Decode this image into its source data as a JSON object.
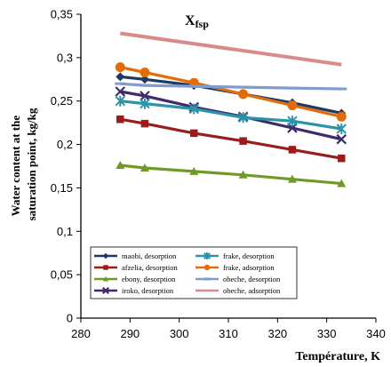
{
  "chart_data": {
    "type": "line",
    "annotation": "X",
    "annotation_sub": "fsp",
    "xlabel": "Température, K",
    "ylabel_lines": [
      "Water content at the",
      "saturation point, kg/kg"
    ],
    "xlim": [
      280,
      340
    ],
    "ylim": [
      0,
      0.35
    ],
    "x_ticks": [
      "280",
      "290",
      "300",
      "310",
      "320",
      "330",
      "340"
    ],
    "y_ticks": [
      "0",
      "0,05",
      "0,1",
      "0,15",
      "0,2",
      "0,25",
      "0,3",
      "0,35"
    ],
    "legend_placement": "bottom-center",
    "grid": false,
    "series": [
      {
        "name": "maobi, desorption",
        "color": "#1f3864",
        "marker": "diamond",
        "x": [
          288,
          293,
          303,
          313,
          323,
          333
        ],
        "y": [
          0.278,
          0.275,
          0.268,
          0.258,
          0.248,
          0.236
        ]
      },
      {
        "name": "afzelia, desorption",
        "color": "#9b1c1c",
        "marker": "square",
        "x": [
          288,
          293,
          303,
          313,
          323,
          333
        ],
        "y": [
          0.229,
          0.224,
          0.213,
          0.204,
          0.194,
          0.184
        ]
      },
      {
        "name": "ebony, desorption",
        "color": "#6e9a28",
        "marker": "triangle",
        "x": [
          288,
          293,
          303,
          313,
          323,
          333
        ],
        "y": [
          0.176,
          0.173,
          0.169,
          0.165,
          0.16,
          0.155
        ]
      },
      {
        "name": "iroko, desorption",
        "color": "#3f2a6b",
        "marker": "x",
        "x": [
          288,
          293,
          303,
          313,
          323,
          333
        ],
        "y": [
          0.261,
          0.256,
          0.243,
          0.232,
          0.219,
          0.206
        ]
      },
      {
        "name": "frake, desorption",
        "color": "#2b94a8",
        "marker": "star",
        "x": [
          288,
          293,
          303,
          313,
          323,
          333
        ],
        "y": [
          0.25,
          0.247,
          0.241,
          0.231,
          0.227,
          0.218
        ]
      },
      {
        "name": "frake, adsorption",
        "color": "#e36c0a",
        "marker": "circle",
        "x": [
          288,
          293,
          303,
          313,
          323,
          333
        ],
        "y": [
          0.289,
          0.283,
          0.271,
          0.258,
          0.245,
          0.232
        ]
      },
      {
        "name": "obeche, desorption",
        "color": "#7f9ccf",
        "marker": "dash",
        "x": [
          288,
          293,
          303,
          313,
          323,
          333
        ],
        "y": [
          0.27,
          0.268,
          0.267,
          0.266,
          0.265,
          0.264
        ]
      },
      {
        "name": "obeche, adsorption",
        "color": "#d98b8b",
        "marker": "none",
        "x": [
          288,
          333
        ],
        "y": [
          0.328,
          0.292
        ]
      }
    ]
  }
}
